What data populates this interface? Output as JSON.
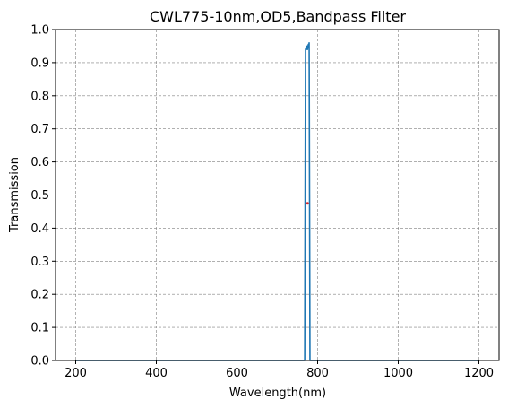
{
  "chart_data": {
    "type": "line",
    "title": "CWL775-10nm,OD5,Bandpass Filter",
    "xlabel": "Wavelength(nm)",
    "ylabel": "Transmission",
    "xlim": [
      150,
      1250
    ],
    "ylim": [
      0,
      1.0
    ],
    "xticks": [
      200,
      400,
      600,
      800,
      1000,
      1200
    ],
    "yticks": [
      0.0,
      0.1,
      0.2,
      0.3,
      0.4,
      0.5,
      0.6,
      0.7,
      0.8,
      0.9,
      1.0
    ],
    "grid": true,
    "series_color": "#1f77b4",
    "marker_color": "#d62728",
    "series": [
      {
        "x": [
          200,
          768,
          769,
          770,
          771,
          772,
          773,
          774,
          775,
          776,
          777,
          778,
          779,
          780,
          781,
          782,
          1200
        ],
        "y": [
          0.0,
          0.0,
          0.5,
          0.94,
          0.945,
          0.94,
          0.95,
          0.945,
          0.94,
          0.95,
          0.955,
          0.95,
          0.96,
          0.5,
          0.0,
          0.0,
          0.0
        ]
      }
    ],
    "marker": {
      "x": [
        775
      ],
      "y": [
        0.475
      ]
    }
  }
}
